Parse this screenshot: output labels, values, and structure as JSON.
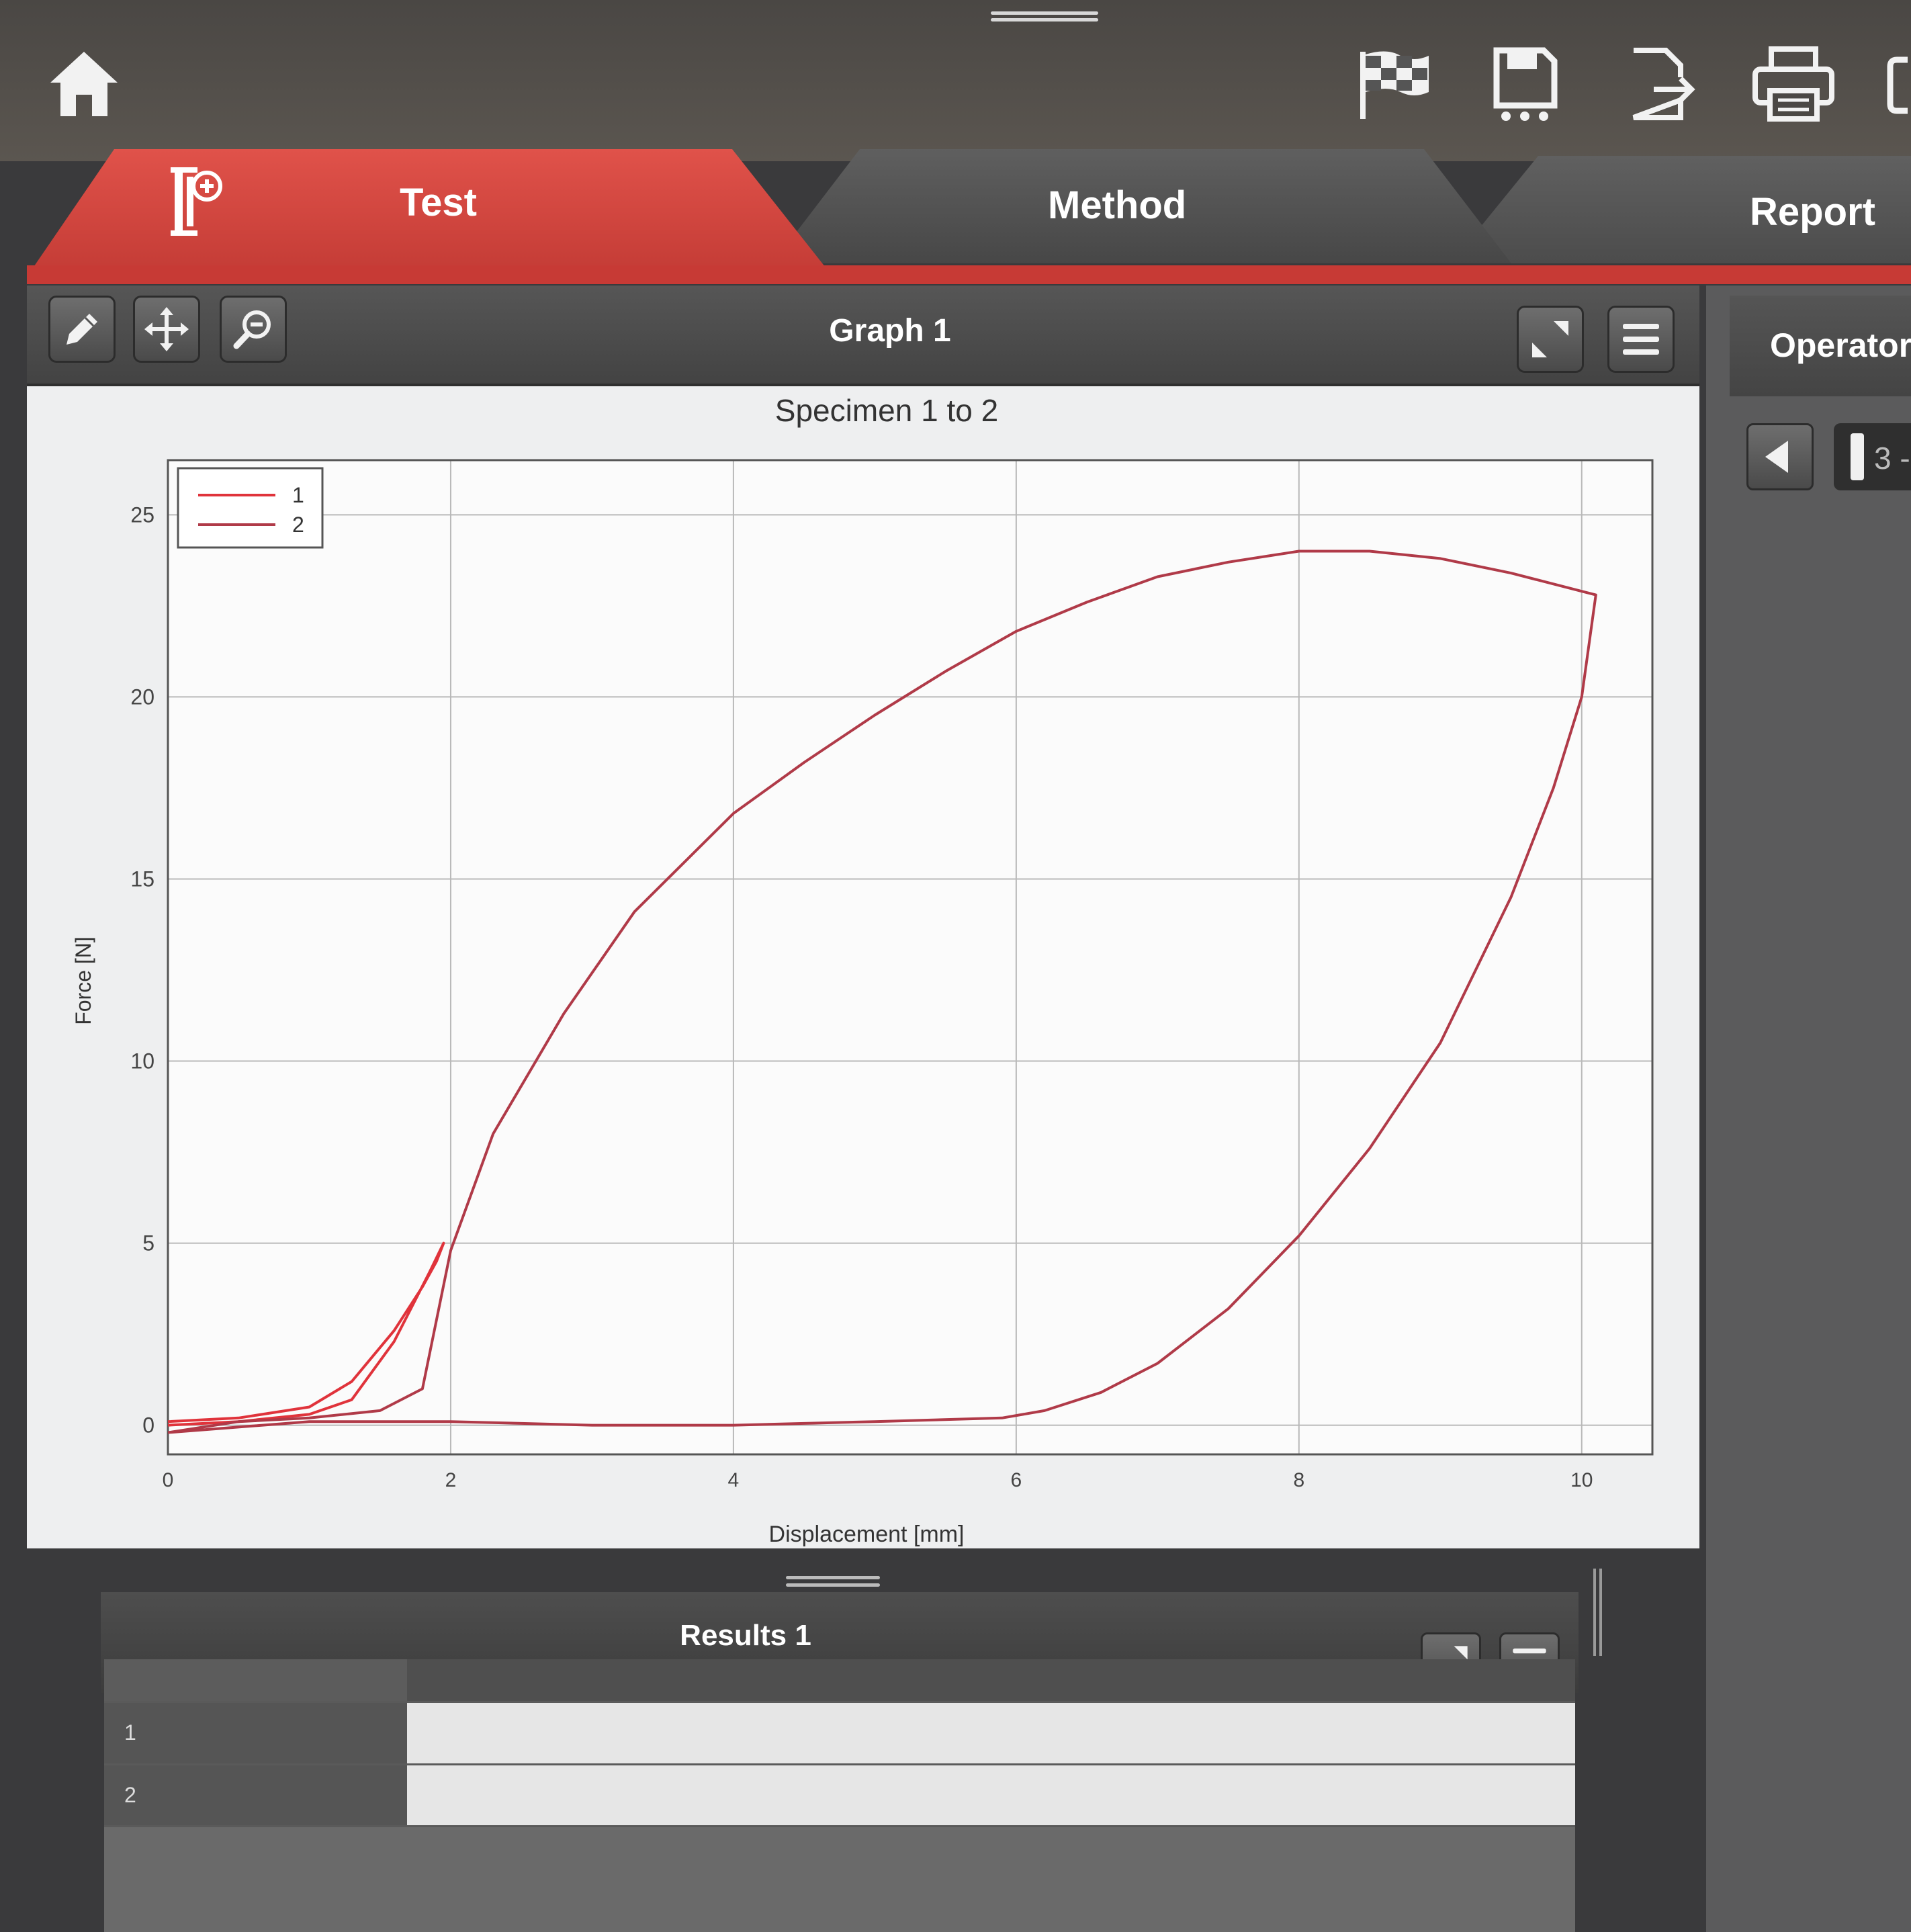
{
  "tabs": {
    "test": "Test",
    "method": "Method",
    "report": "Report"
  },
  "graph_panel": {
    "title": "Graph 1"
  },
  "operator_panel": {
    "label": "Operator",
    "value": "3 -"
  },
  "results_panel": {
    "title": "Results 1",
    "rows": [
      "1",
      "2"
    ]
  },
  "icons": {
    "home": "home-icon",
    "finish": "checkered-flag-icon",
    "save": "save-icon",
    "export": "export-icon",
    "print": "printer-icon",
    "specimen": "specimen-add-icon",
    "edit": "pencil-icon",
    "pan": "move-icon",
    "zoom": "zoom-out-icon",
    "expand": "expand-icon",
    "menu": "menu-icon",
    "prev": "triangle-left-icon"
  },
  "colors": {
    "accent_red": "#c73a35",
    "series_1": "#e0333b",
    "series_2": "#b03a48"
  },
  "chart_data": {
    "type": "line",
    "title": "Specimen 1 to 2",
    "xlabel": "Displacement [mm]",
    "ylabel": "Force [N]",
    "xlim": [
      0,
      10.5
    ],
    "ylim": [
      -0.8,
      26.5
    ],
    "xticks": [
      0,
      2,
      4,
      6,
      8,
      10
    ],
    "yticks": [
      0,
      5,
      10,
      15,
      20,
      25
    ],
    "grid": true,
    "legend_position": "top-left",
    "series": [
      {
        "name": "1",
        "x": [
          0,
          0.5,
          1.0,
          1.3,
          1.6,
          1.85,
          1.95,
          1.9,
          1.8,
          1.6,
          1.3,
          1.0,
          0.5,
          0.0
        ],
        "y": [
          0.0,
          0.1,
          0.3,
          0.7,
          2.3,
          4.2,
          5.0,
          4.5,
          3.8,
          2.6,
          1.2,
          0.5,
          0.2,
          0.1
        ]
      },
      {
        "name": "2",
        "x": [
          0.0,
          0.5,
          1.0,
          1.5,
          1.8,
          2.0,
          2.3,
          2.8,
          3.3,
          4.0,
          4.5,
          5.0,
          5.5,
          6.0,
          6.5,
          7.0,
          7.5,
          8.0,
          8.5,
          9.0,
          9.5,
          10.0,
          10.1,
          10.0,
          9.8,
          9.5,
          9.0,
          8.5,
          8.0,
          7.5,
          7.0,
          6.6,
          6.2,
          5.9,
          5.0,
          4.0,
          3.0,
          2.0,
          1.0,
          0.0
        ],
        "y": [
          -0.2,
          0.1,
          0.2,
          0.4,
          1.0,
          4.8,
          8.0,
          11.3,
          14.1,
          16.8,
          18.2,
          19.5,
          20.7,
          21.8,
          22.6,
          23.3,
          23.7,
          24.0,
          24.0,
          23.8,
          23.4,
          22.9,
          22.8,
          20.0,
          17.5,
          14.5,
          10.5,
          7.6,
          5.2,
          3.2,
          1.7,
          0.9,
          0.4,
          0.2,
          0.1,
          0.0,
          0.0,
          0.1,
          0.1,
          -0.2
        ]
      }
    ]
  }
}
